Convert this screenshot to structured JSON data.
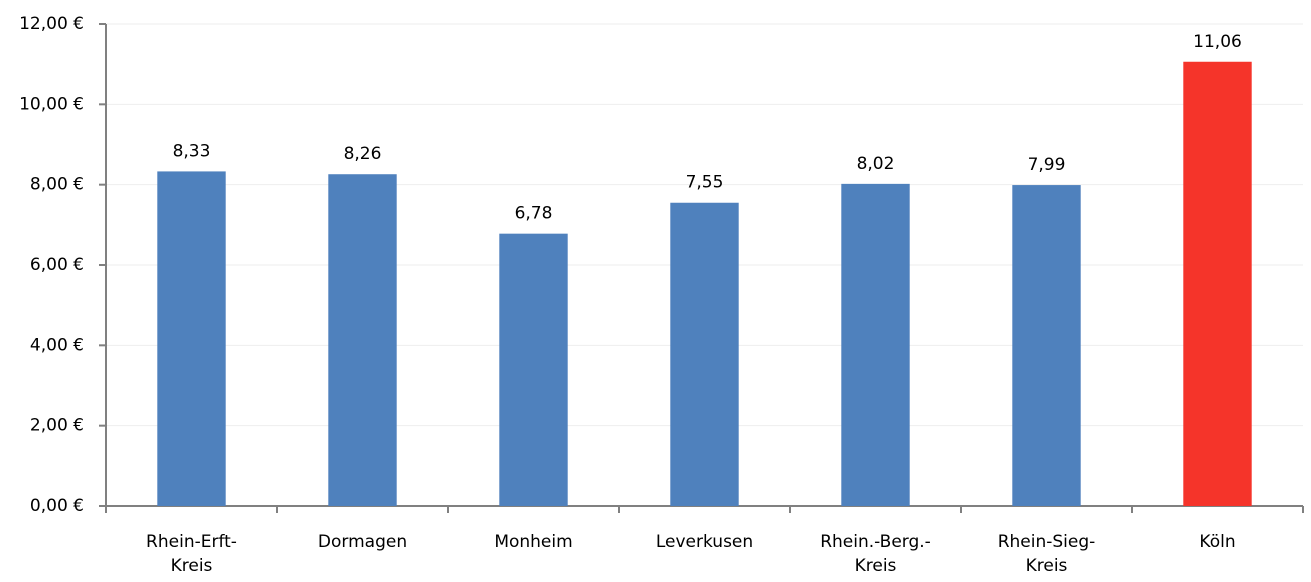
{
  "chart_data": {
    "type": "bar",
    "categories": [
      "Rhein-Erft-\nKreis",
      "Dormagen",
      "Monheim",
      "Leverkusen",
      "Rhein.-Berg.-\nKreis",
      "Rhein-Sieg-\nKreis",
      "Köln"
    ],
    "values": [
      8.33,
      8.26,
      6.78,
      7.55,
      8.02,
      7.99,
      11.06
    ],
    "value_labels": [
      "8,33",
      "8,26",
      "6,78",
      "7,55",
      "8,02",
      "7,99",
      "11,06"
    ],
    "colors": [
      "#4f81bd",
      "#4f81bd",
      "#4f81bd",
      "#4f81bd",
      "#4f81bd",
      "#4f81bd",
      "#f5342a"
    ],
    "ylim": [
      0,
      12
    ],
    "yticks": [
      {
        "value": 0,
        "label": "0,00 €"
      },
      {
        "value": 2,
        "label": "2,00 €"
      },
      {
        "value": 4,
        "label": "4,00 €"
      },
      {
        "value": 6,
        "label": "6,00 €"
      },
      {
        "value": 8,
        "label": "8,00 €"
      },
      {
        "value": 10,
        "label": "10,00 €"
      },
      {
        "value": 12,
        "label": "12,00 €"
      }
    ],
    "grid": true
  }
}
